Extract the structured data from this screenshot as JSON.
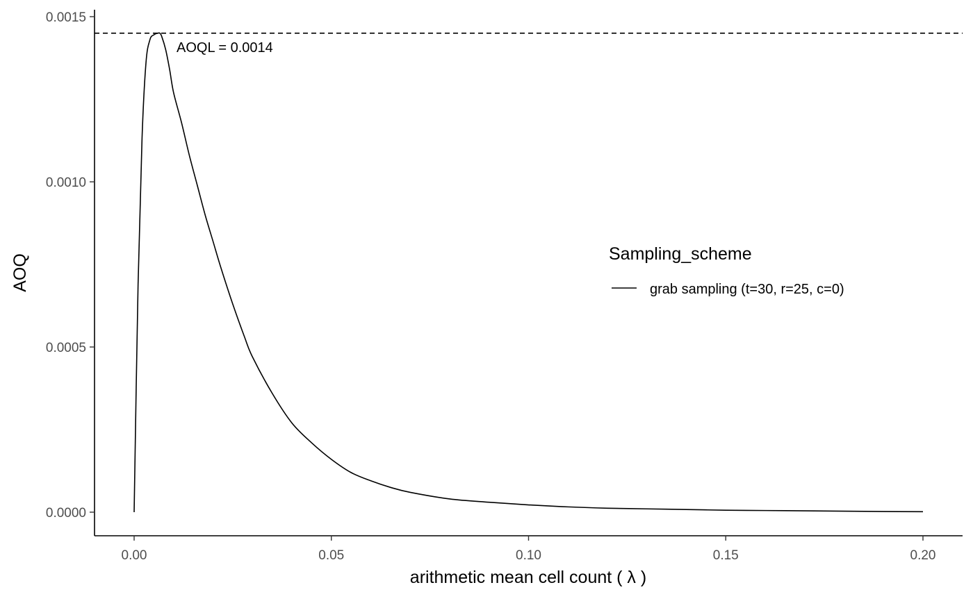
{
  "chart_data": {
    "type": "line",
    "title": "",
    "xlabel": "arithmetic mean cell count ( λ )",
    "ylabel": "AOQ",
    "xlim": [
      -0.01,
      0.2
    ],
    "ylim": [
      -7e-05,
      0.00152
    ],
    "x_ticks": [
      0.0,
      0.05,
      0.1,
      0.15,
      0.2
    ],
    "x_tick_labels": [
      "0.00",
      "0.05",
      "0.10",
      "0.15",
      "0.20"
    ],
    "y_ticks": [
      0.0,
      0.0005,
      0.001,
      0.0015
    ],
    "y_tick_labels": [
      "0.0000",
      "0.0005",
      "0.0010",
      "0.0015"
    ],
    "grid": false,
    "legend": {
      "title": "Sampling_scheme",
      "position": "right",
      "entries": [
        "grab sampling (t=30, r=25, c=0)"
      ]
    },
    "series": [
      {
        "name": "grab sampling (t=30, r=25, c=0)",
        "color": "#000000",
        "x": [
          0.0,
          0.001,
          0.002,
          0.003,
          0.004,
          0.005,
          0.006,
          0.0065,
          0.007,
          0.008,
          0.009,
          0.01,
          0.012,
          0.014,
          0.016,
          0.018,
          0.02,
          0.022,
          0.025,
          0.028,
          0.03,
          0.035,
          0.04,
          0.045,
          0.05,
          0.055,
          0.06,
          0.065,
          0.07,
          0.08,
          0.09,
          0.1,
          0.11,
          0.12,
          0.13,
          0.14,
          0.15,
          0.16,
          0.17,
          0.18,
          0.19,
          0.2
        ],
        "y": [
          0.0,
          0.00069,
          0.00113,
          0.00136,
          0.00143,
          0.001445,
          0.00145,
          0.00145,
          0.00144,
          0.0014,
          0.00134,
          0.00127,
          0.00118,
          0.00108,
          0.00099,
          0.0009,
          0.00082,
          0.00074,
          0.00063,
          0.00053,
          0.00047,
          0.00036,
          0.00027,
          0.00021,
          0.00016,
          0.00012,
          9.5e-05,
          7.5e-05,
          6e-05,
          4e-05,
          3e-05,
          2.2e-05,
          1.6e-05,
          1.2e-05,
          1e-05,
          8e-06,
          6e-06,
          5e-06,
          4e-06,
          3e-06,
          2e-06,
          1.5e-06
        ]
      }
    ],
    "reference_line": {
      "orientation": "horizontal",
      "y": 0.00145,
      "style": "dashed",
      "annotation": "AOQL = 0.0014"
    }
  }
}
